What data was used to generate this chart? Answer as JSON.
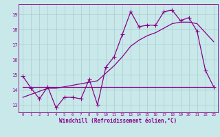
{
  "x": [
    0,
    1,
    2,
    3,
    4,
    5,
    6,
    7,
    8,
    9,
    10,
    11,
    12,
    13,
    14,
    15,
    16,
    17,
    18,
    19,
    20,
    21,
    22,
    23
  ],
  "windchill": [
    14.9,
    14.1,
    13.4,
    14.2,
    12.8,
    13.5,
    13.5,
    13.4,
    14.7,
    13.0,
    15.5,
    16.2,
    17.7,
    19.2,
    18.2,
    18.3,
    18.3,
    19.2,
    19.3,
    18.6,
    18.8,
    17.9,
    15.3,
    14.2
  ],
  "flat_line": [
    14.2,
    14.2,
    14.2,
    14.2,
    14.2,
    14.2,
    14.2,
    14.2,
    14.2,
    14.2,
    14.2,
    14.2,
    14.2,
    14.2,
    14.2,
    14.2,
    14.2,
    14.2,
    14.2,
    14.2,
    14.2,
    14.2,
    14.2,
    14.2
  ],
  "regression": [
    13.5,
    13.7,
    13.9,
    14.1,
    14.1,
    14.2,
    14.3,
    14.4,
    14.5,
    14.6,
    15.1,
    15.6,
    16.2,
    16.9,
    17.3,
    17.6,
    17.8,
    18.1,
    18.4,
    18.5,
    18.5,
    18.4,
    17.8,
    17.2
  ],
  "line_color": "#880088",
  "bg_color": "#c8e8ea",
  "grid_color": "#aaccce",
  "xlabel": "Windchill (Refroidissement éolien,°C)",
  "ylim": [
    12.5,
    19.7
  ],
  "xlim": [
    -0.5,
    23.5
  ],
  "yticks": [
    13,
    14,
    15,
    16,
    17,
    18,
    19
  ],
  "xticks": [
    0,
    1,
    2,
    3,
    4,
    5,
    6,
    7,
    8,
    9,
    10,
    11,
    12,
    13,
    14,
    15,
    16,
    17,
    18,
    19,
    20,
    21,
    22,
    23
  ],
  "line_width": 0.9,
  "marker_size": 4.0
}
